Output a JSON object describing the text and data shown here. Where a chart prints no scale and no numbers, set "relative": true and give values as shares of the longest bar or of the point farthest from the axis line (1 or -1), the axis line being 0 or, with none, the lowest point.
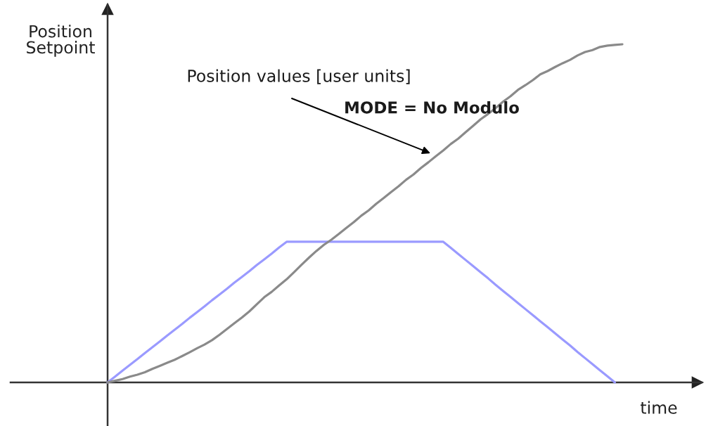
{
  "chart_data": {
    "type": "line",
    "relative": true,
    "xlabel": "time",
    "ylabel": "Position\nSetpoint",
    "annotations": [
      "Position values [user units]",
      "MODE = No Modulo"
    ],
    "categories": [
      null,
      null,
      null,
      null,
      null,
      null,
      null,
      null,
      null,
      null,
      null,
      null,
      null,
      null,
      null,
      null,
      null,
      null,
      null,
      null,
      null,
      null,
      null,
      null,
      null,
      null,
      null,
      null,
      null,
      null,
      null,
      null,
      null,
      null,
      null,
      null,
      null,
      null,
      null,
      null,
      null,
      null,
      null,
      null,
      null,
      null,
      null,
      null,
      null,
      null,
      null,
      null,
      null,
      null,
      null,
      null,
      null,
      null,
      null,
      null,
      null,
      null,
      null,
      null,
      null,
      null,
      null,
      null,
      null,
      null
    ],
    "series": [
      {
        "color": "#9a9aff",
        "values": [
          0,
          0.017,
          0.035,
          0.052,
          0.069,
          0.087,
          0.104,
          0.121,
          0.139,
          0.156,
          0.173,
          0.191,
          0.208,
          0.225,
          0.243,
          0.26,
          0.277,
          0.295,
          0.312,
          0.329,
          0.347,
          0.364,
          0.381,
          0.399,
          0.416,
          0.416,
          0.416,
          0.416,
          0.416,
          0.416,
          0.416,
          0.416,
          0.416,
          0.416,
          0.416,
          0.416,
          0.416,
          0.416,
          0.416,
          0.416,
          0.416,
          0.416,
          0.416,
          0.416,
          0.416,
          0.416,
          0.398,
          0.38,
          0.362,
          0.344,
          0.326,
          0.308,
          0.289,
          0.271,
          0.253,
          0.235,
          0.217,
          0.199,
          0.181,
          0.163,
          0.145,
          0.127,
          0.109,
          0.09,
          0.072,
          0.054,
          0.036,
          0.018,
          0,
          null
        ]
      },
      {
        "color": "#8a8a8a",
        "values": [
          0,
          0.005,
          0.01,
          0.017,
          0.023,
          0.03,
          0.04,
          0.049,
          0.058,
          0.067,
          0.078,
          0.089,
          0.101,
          0.112,
          0.125,
          0.141,
          0.158,
          0.175,
          0.192,
          0.21,
          0.231,
          0.252,
          0.268,
          0.287,
          0.305,
          0.326,
          0.348,
          0.369,
          0.389,
          0.407,
          0.422,
          0.439,
          0.457,
          0.474,
          0.493,
          0.509,
          0.528,
          0.545,
          0.563,
          0.58,
          0.599,
          0.615,
          0.634,
          0.651,
          0.669,
          0.686,
          0.705,
          0.721,
          0.74,
          0.759,
          0.778,
          0.794,
          0.811,
          0.83,
          0.846,
          0.865,
          0.879,
          0.894,
          0.911,
          0.921,
          0.933,
          0.944,
          0.954,
          0.967,
          0.977,
          0.983,
          0.992,
          0.996,
          0.998,
          1.0
        ]
      }
    ]
  }
}
